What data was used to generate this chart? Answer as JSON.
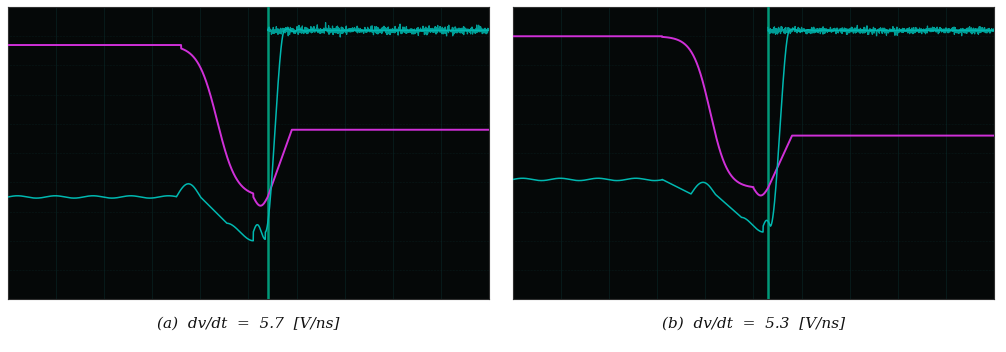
{
  "fig_width": 10.06,
  "fig_height": 3.52,
  "background_color": "#050808",
  "fig_background": "#ffffff",
  "panel_a_label": "(a)  dv/dt  =  5.7  [V/ns]",
  "panel_b_label": "(b)  dv/dt  =  5.3  [V/ns]",
  "label_fontsize": 11,
  "magenta_color": "#d030d8",
  "cyan_color": "#00b8b0",
  "trigger_line_color": "#009978",
  "grid_color": "#0a2828",
  "grid_dot_color": "#153535"
}
